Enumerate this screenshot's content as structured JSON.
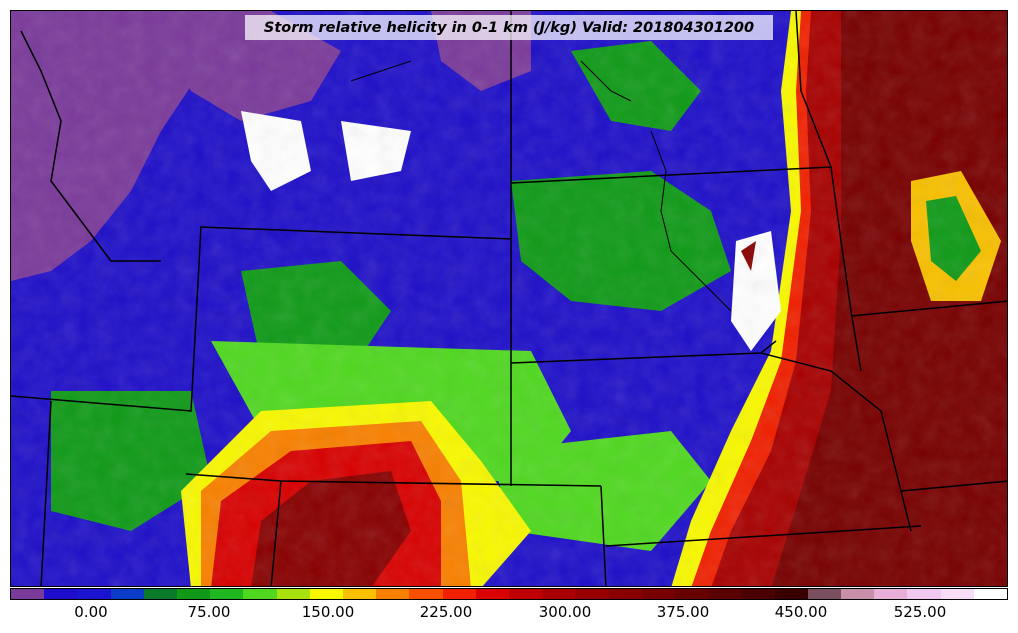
{
  "title": "Storm relative helicity in 0-1 km (J/kg) Valid: 201804301200",
  "colorbar": {
    "colors": [
      "#7a3a9a",
      "#1e0ccc",
      "#1a14d0",
      "#0a3cc8",
      "#0a7a2a",
      "#109a18",
      "#20b820",
      "#50d820",
      "#a8e010",
      "#f8f800",
      "#f8c000",
      "#f88000",
      "#f85000",
      "#f02000",
      "#d80000",
      "#c00000",
      "#a80000",
      "#980000",
      "#880000",
      "#780000",
      "#680000",
      "#5a0000",
      "#4a0000",
      "#3a0000",
      "#7a5060",
      "#c890a8",
      "#e8b0d8",
      "#f0c8f0",
      "#f8dcf8",
      "#ffffff"
    ],
    "tick_labels": [
      "0.00",
      "75.00",
      "150.00",
      "225.00",
      "300.00",
      "375.00",
      "450.00",
      "525.00"
    ]
  },
  "legend": {
    "levels": [
      "-37.5",
      "0",
      "25",
      "50",
      "75",
      "100",
      "125",
      "150",
      "175",
      "200",
      "225",
      "250",
      "300",
      "350",
      "400",
      "450",
      "500",
      "550"
    ]
  }
}
